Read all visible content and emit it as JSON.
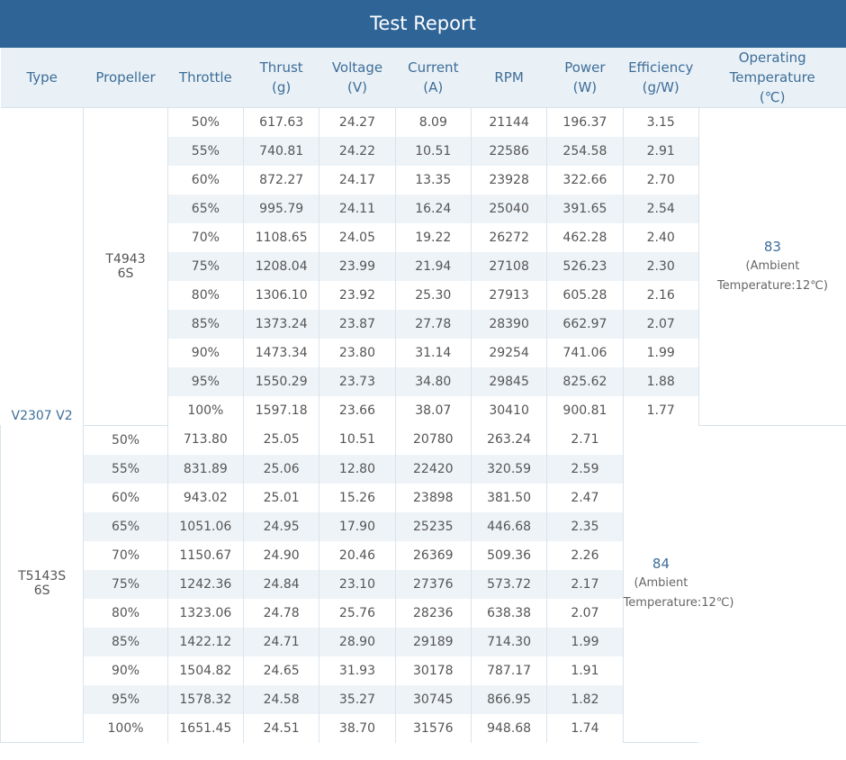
{
  "title": "Test Report",
  "headers": {
    "type": "Type",
    "propeller": "Propeller",
    "throttle": "Throttle",
    "thrust": [
      "Thrust",
      "(g)"
    ],
    "voltage": [
      "Voltage",
      "(V)"
    ],
    "current": [
      "Current",
      "(A)"
    ],
    "rpm": "RPM",
    "power": [
      "Power",
      "(W)"
    ],
    "efficiency": [
      "Efficiency",
      "(g/W)"
    ],
    "temperature": [
      "Operating",
      "Temperature",
      "(℃)"
    ]
  },
  "type_value": "V2307 V2",
  "groups": [
    {
      "propeller": [
        "T4943",
        "6S"
      ],
      "temperature": "83",
      "ambient": [
        "(Ambient",
        "Temperature:12℃)"
      ],
      "rows": [
        [
          "50%",
          "617.63",
          "24.27",
          "8.09",
          "21144",
          "196.37",
          "3.15"
        ],
        [
          "55%",
          "740.81",
          "24.22",
          "10.51",
          "22586",
          "254.58",
          "2.91"
        ],
        [
          "60%",
          "872.27",
          "24.17",
          "13.35",
          "23928",
          "322.66",
          "2.70"
        ],
        [
          "65%",
          "995.79",
          "24.11",
          "16.24",
          "25040",
          "391.65",
          "2.54"
        ],
        [
          "70%",
          "1108.65",
          "24.05",
          "19.22",
          "26272",
          "462.28",
          "2.40"
        ],
        [
          "75%",
          "1208.04",
          "23.99",
          "21.94",
          "27108",
          "526.23",
          "2.30"
        ],
        [
          "80%",
          "1306.10",
          "23.92",
          "25.30",
          "27913",
          "605.28",
          "2.16"
        ],
        [
          "85%",
          "1373.24",
          "23.87",
          "27.78",
          "28390",
          "662.97",
          "2.07"
        ],
        [
          "90%",
          "1473.34",
          "23.80",
          "31.14",
          "29254",
          "741.06",
          "1.99"
        ],
        [
          "95%",
          "1550.29",
          "23.73",
          "34.80",
          "29845",
          "825.62",
          "1.88"
        ],
        [
          "100%",
          "1597.18",
          "23.66",
          "38.07",
          "30410",
          "900.81",
          "1.77"
        ]
      ]
    },
    {
      "propeller": [
        "T5143S",
        "6S"
      ],
      "temperature": "84",
      "ambient": [
        "(Ambient",
        "Temperature:12℃)"
      ],
      "rows": [
        [
          "50%",
          "713.80",
          "25.05",
          "10.51",
          "20780",
          "263.24",
          "2.71"
        ],
        [
          "55%",
          "831.89",
          "25.06",
          "12.80",
          "22420",
          "320.59",
          "2.59"
        ],
        [
          "60%",
          "943.02",
          "25.01",
          "15.26",
          "23898",
          "381.50",
          "2.47"
        ],
        [
          "65%",
          "1051.06",
          "24.95",
          "17.90",
          "25235",
          "446.68",
          "2.35"
        ],
        [
          "70%",
          "1150.67",
          "24.90",
          "20.46",
          "26369",
          "509.36",
          "2.26"
        ],
        [
          "75%",
          "1242.36",
          "24.84",
          "23.10",
          "27376",
          "573.72",
          "2.17"
        ],
        [
          "80%",
          "1323.06",
          "24.78",
          "25.76",
          "28236",
          "638.38",
          "2.07"
        ],
        [
          "85%",
          "1422.12",
          "24.71",
          "28.90",
          "29189",
          "714.30",
          "1.99"
        ],
        [
          "90%",
          "1504.82",
          "24.65",
          "31.93",
          "30178",
          "787.17",
          "1.91"
        ],
        [
          "95%",
          "1578.32",
          "24.58",
          "35.27",
          "30745",
          "866.95",
          "1.82"
        ],
        [
          "100%",
          "1651.45",
          "24.51",
          "38.70",
          "31576",
          "948.68",
          "1.74"
        ]
      ]
    }
  ],
  "colors": {
    "title_bg": "#2e6496",
    "header_bg": "#e9f1f7",
    "header_text": "#3e6d97",
    "stripe": "#eef3f7"
  }
}
